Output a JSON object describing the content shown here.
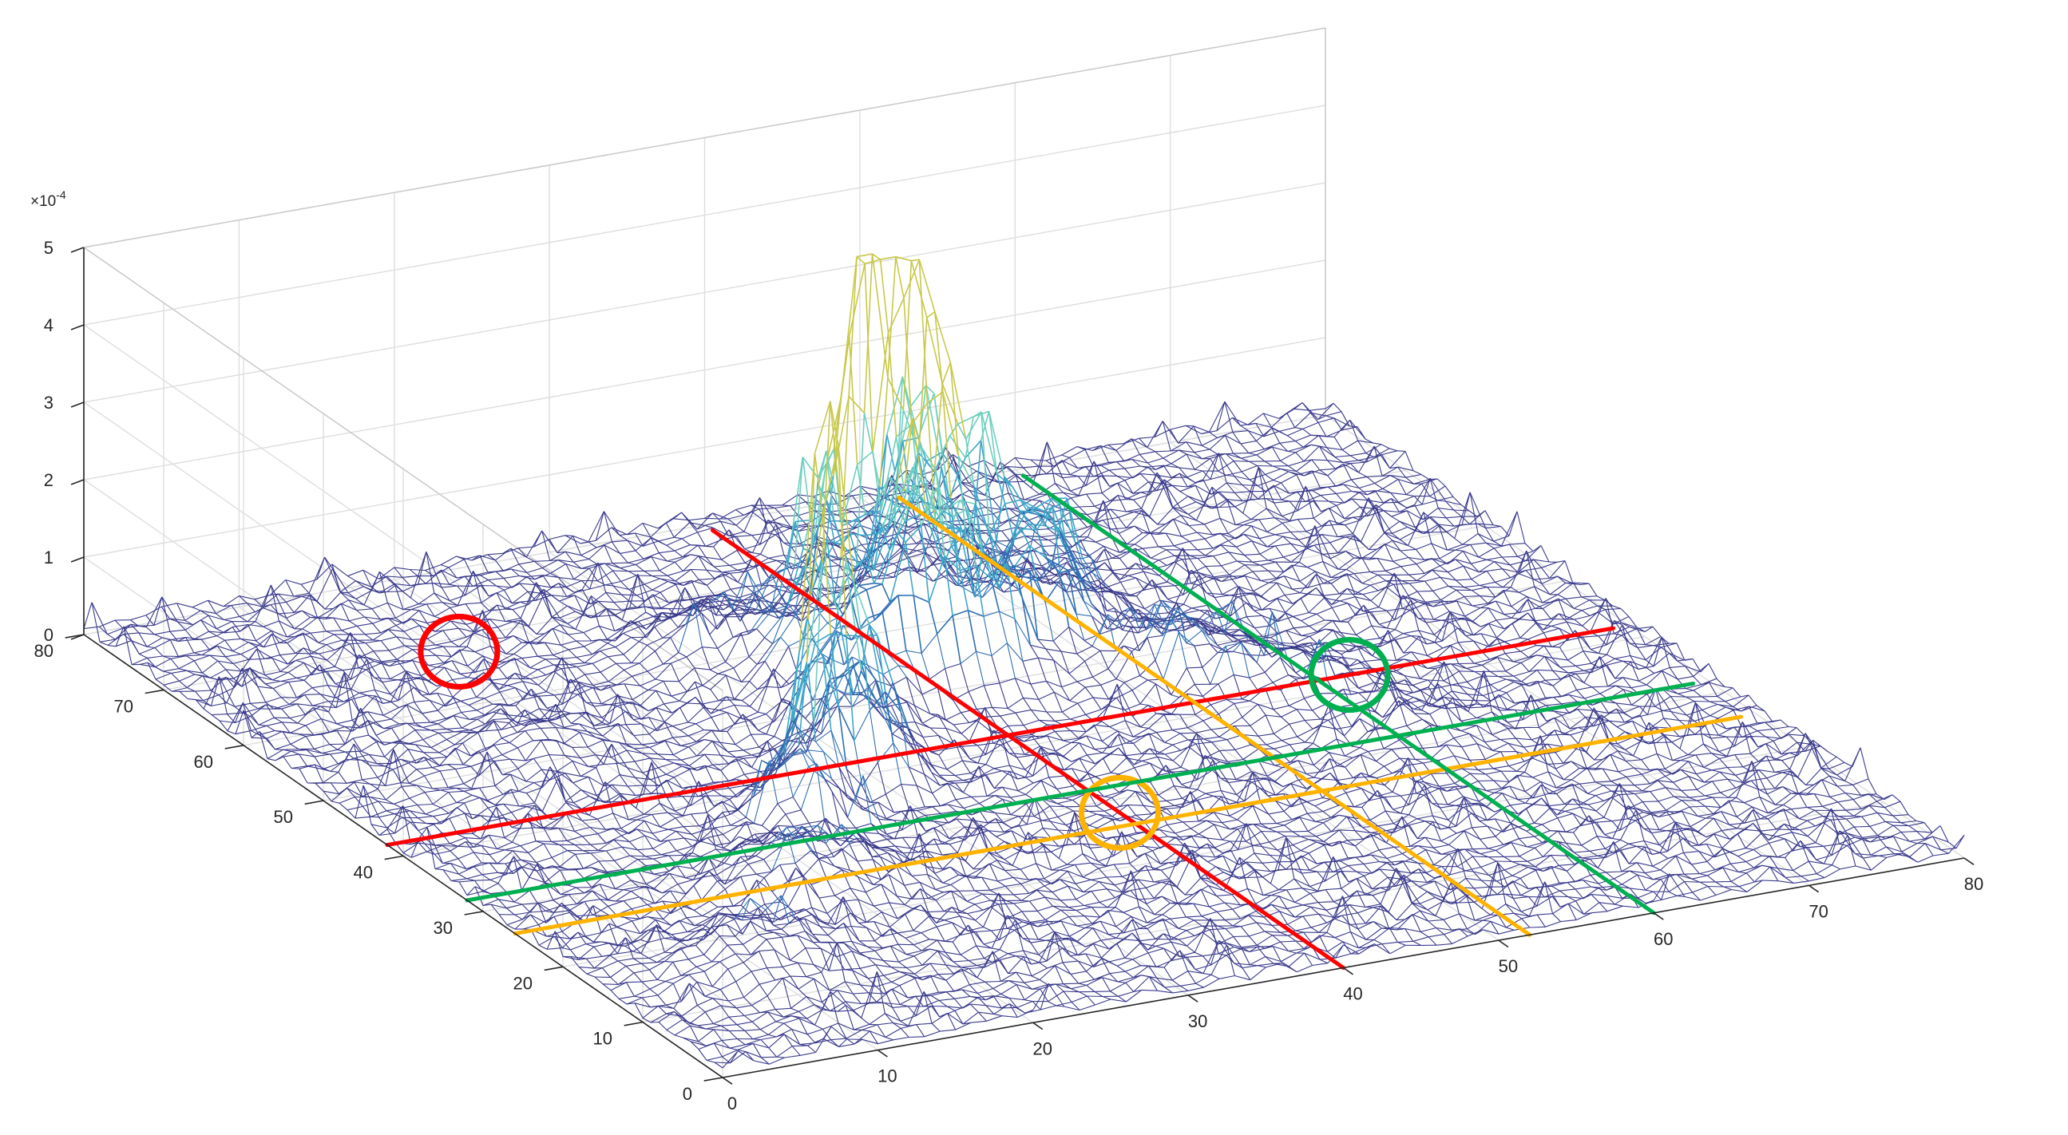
{
  "chart_data": {
    "type": "surface",
    "title": "",
    "xlabel": "",
    "ylabel": "",
    "zlabel": "",
    "xlim": [
      0,
      80
    ],
    "ylim": [
      0,
      80
    ],
    "zlim": [
      0,
      5
    ],
    "x_ticks": [
      "0",
      "10",
      "20",
      "30",
      "40",
      "50",
      "60",
      "70",
      "80"
    ],
    "y_ticks": [
      "0",
      "10",
      "20",
      "30",
      "40",
      "50",
      "60",
      "70",
      "80"
    ],
    "z_ticks": [
      "0",
      "1",
      "2",
      "3",
      "4",
      "5"
    ],
    "z_multiplier": "×10",
    "z_multiplier_exp": "-4",
    "grid": true,
    "grid_resolution": 80,
    "peaks": [
      {
        "x": 41,
        "y": 58,
        "z": 5.0,
        "spread": 1.2
      },
      {
        "x": 43,
        "y": 57,
        "z": 5.0,
        "spread": 1.2
      },
      {
        "x": 39,
        "y": 59,
        "z": 5.0,
        "spread": 1.2
      },
      {
        "x": 44,
        "y": 62,
        "z": 3.9,
        "spread": 1.5
      },
      {
        "x": 40,
        "y": 54,
        "z": 3.2,
        "spread": 1.6
      },
      {
        "x": 36,
        "y": 57,
        "z": 2.7,
        "spread": 1.8
      },
      {
        "x": 46,
        "y": 58,
        "z": 3.0,
        "spread": 1.6
      },
      {
        "x": 38,
        "y": 50,
        "z": 2.4,
        "spread": 2.0
      },
      {
        "x": 47,
        "y": 52,
        "z": 2.2,
        "spread": 2.0
      },
      {
        "x": 42,
        "y": 49,
        "z": 2.0,
        "spread": 2.2
      },
      {
        "x": 34,
        "y": 53,
        "z": 1.6,
        "spread": 2.2
      },
      {
        "x": 50,
        "y": 56,
        "z": 1.8,
        "spread": 2.0
      },
      {
        "x": 27,
        "y": 39,
        "z": 4.2,
        "spread": 1.0
      },
      {
        "x": 26,
        "y": 38,
        "z": 3.2,
        "spread": 1.1
      },
      {
        "x": 29,
        "y": 37,
        "z": 2.2,
        "spread": 1.3
      },
      {
        "x": 24,
        "y": 36,
        "z": 1.6,
        "spread": 1.4
      },
      {
        "x": 30,
        "y": 41,
        "z": 1.4,
        "spread": 1.6
      },
      {
        "x": 33,
        "y": 47,
        "z": 1.2,
        "spread": 2.4
      },
      {
        "x": 22,
        "y": 33,
        "z": 1.0,
        "spread": 1.8
      },
      {
        "x": 18,
        "y": 24,
        "z": 0.9,
        "spread": 3.5
      },
      {
        "x": 10,
        "y": 14,
        "z": 0.7,
        "spread": 3.5
      },
      {
        "x": 30,
        "y": 60,
        "z": 0.8,
        "spread": 3.0
      },
      {
        "x": 52,
        "y": 46,
        "z": 0.9,
        "spread": 3.0
      },
      {
        "x": 56,
        "y": 40,
        "z": 0.6,
        "spread": 3.5
      },
      {
        "x": 14,
        "y": 50,
        "z": 0.4,
        "spread": 3.0
      },
      {
        "x": 60,
        "y": 30,
        "z": 0.4,
        "spread": 3.0
      }
    ],
    "noise_amplitude": 0.22,
    "colormap": [
      "#3a3a8c",
      "#2f6fb3",
      "#3fa7c9",
      "#6fcfbf",
      "#c8c84a"
    ],
    "annotations": [
      {
        "type": "line",
        "color": "#ff0000",
        "from": [
          40,
          79
        ],
        "to": [
          40,
          0
        ]
      },
      {
        "type": "line",
        "color": "#ff0000",
        "from": [
          79,
          42
        ],
        "to": [
          0,
          42
        ]
      },
      {
        "type": "circle",
        "color": "#ff0000",
        "at": [
          18,
          68
        ]
      },
      {
        "type": "line",
        "color": "#ffb300",
        "from": [
          52,
          79
        ],
        "to": [
          52,
          0
        ]
      },
      {
        "type": "line",
        "color": "#ffb300",
        "from": [
          79,
          26
        ],
        "to": [
          0,
          26
        ]
      },
      {
        "type": "circle",
        "color": "#ffb300",
        "at": [
          40,
          28
        ]
      },
      {
        "type": "line",
        "color": "#00b050",
        "from": [
          60,
          79
        ],
        "to": [
          60,
          0
        ]
      },
      {
        "type": "line",
        "color": "#00b050",
        "from": [
          79,
          32
        ],
        "to": [
          0,
          32
        ]
      },
      {
        "type": "circle",
        "color": "#00b050",
        "at": [
          62,
          42
        ]
      }
    ]
  }
}
